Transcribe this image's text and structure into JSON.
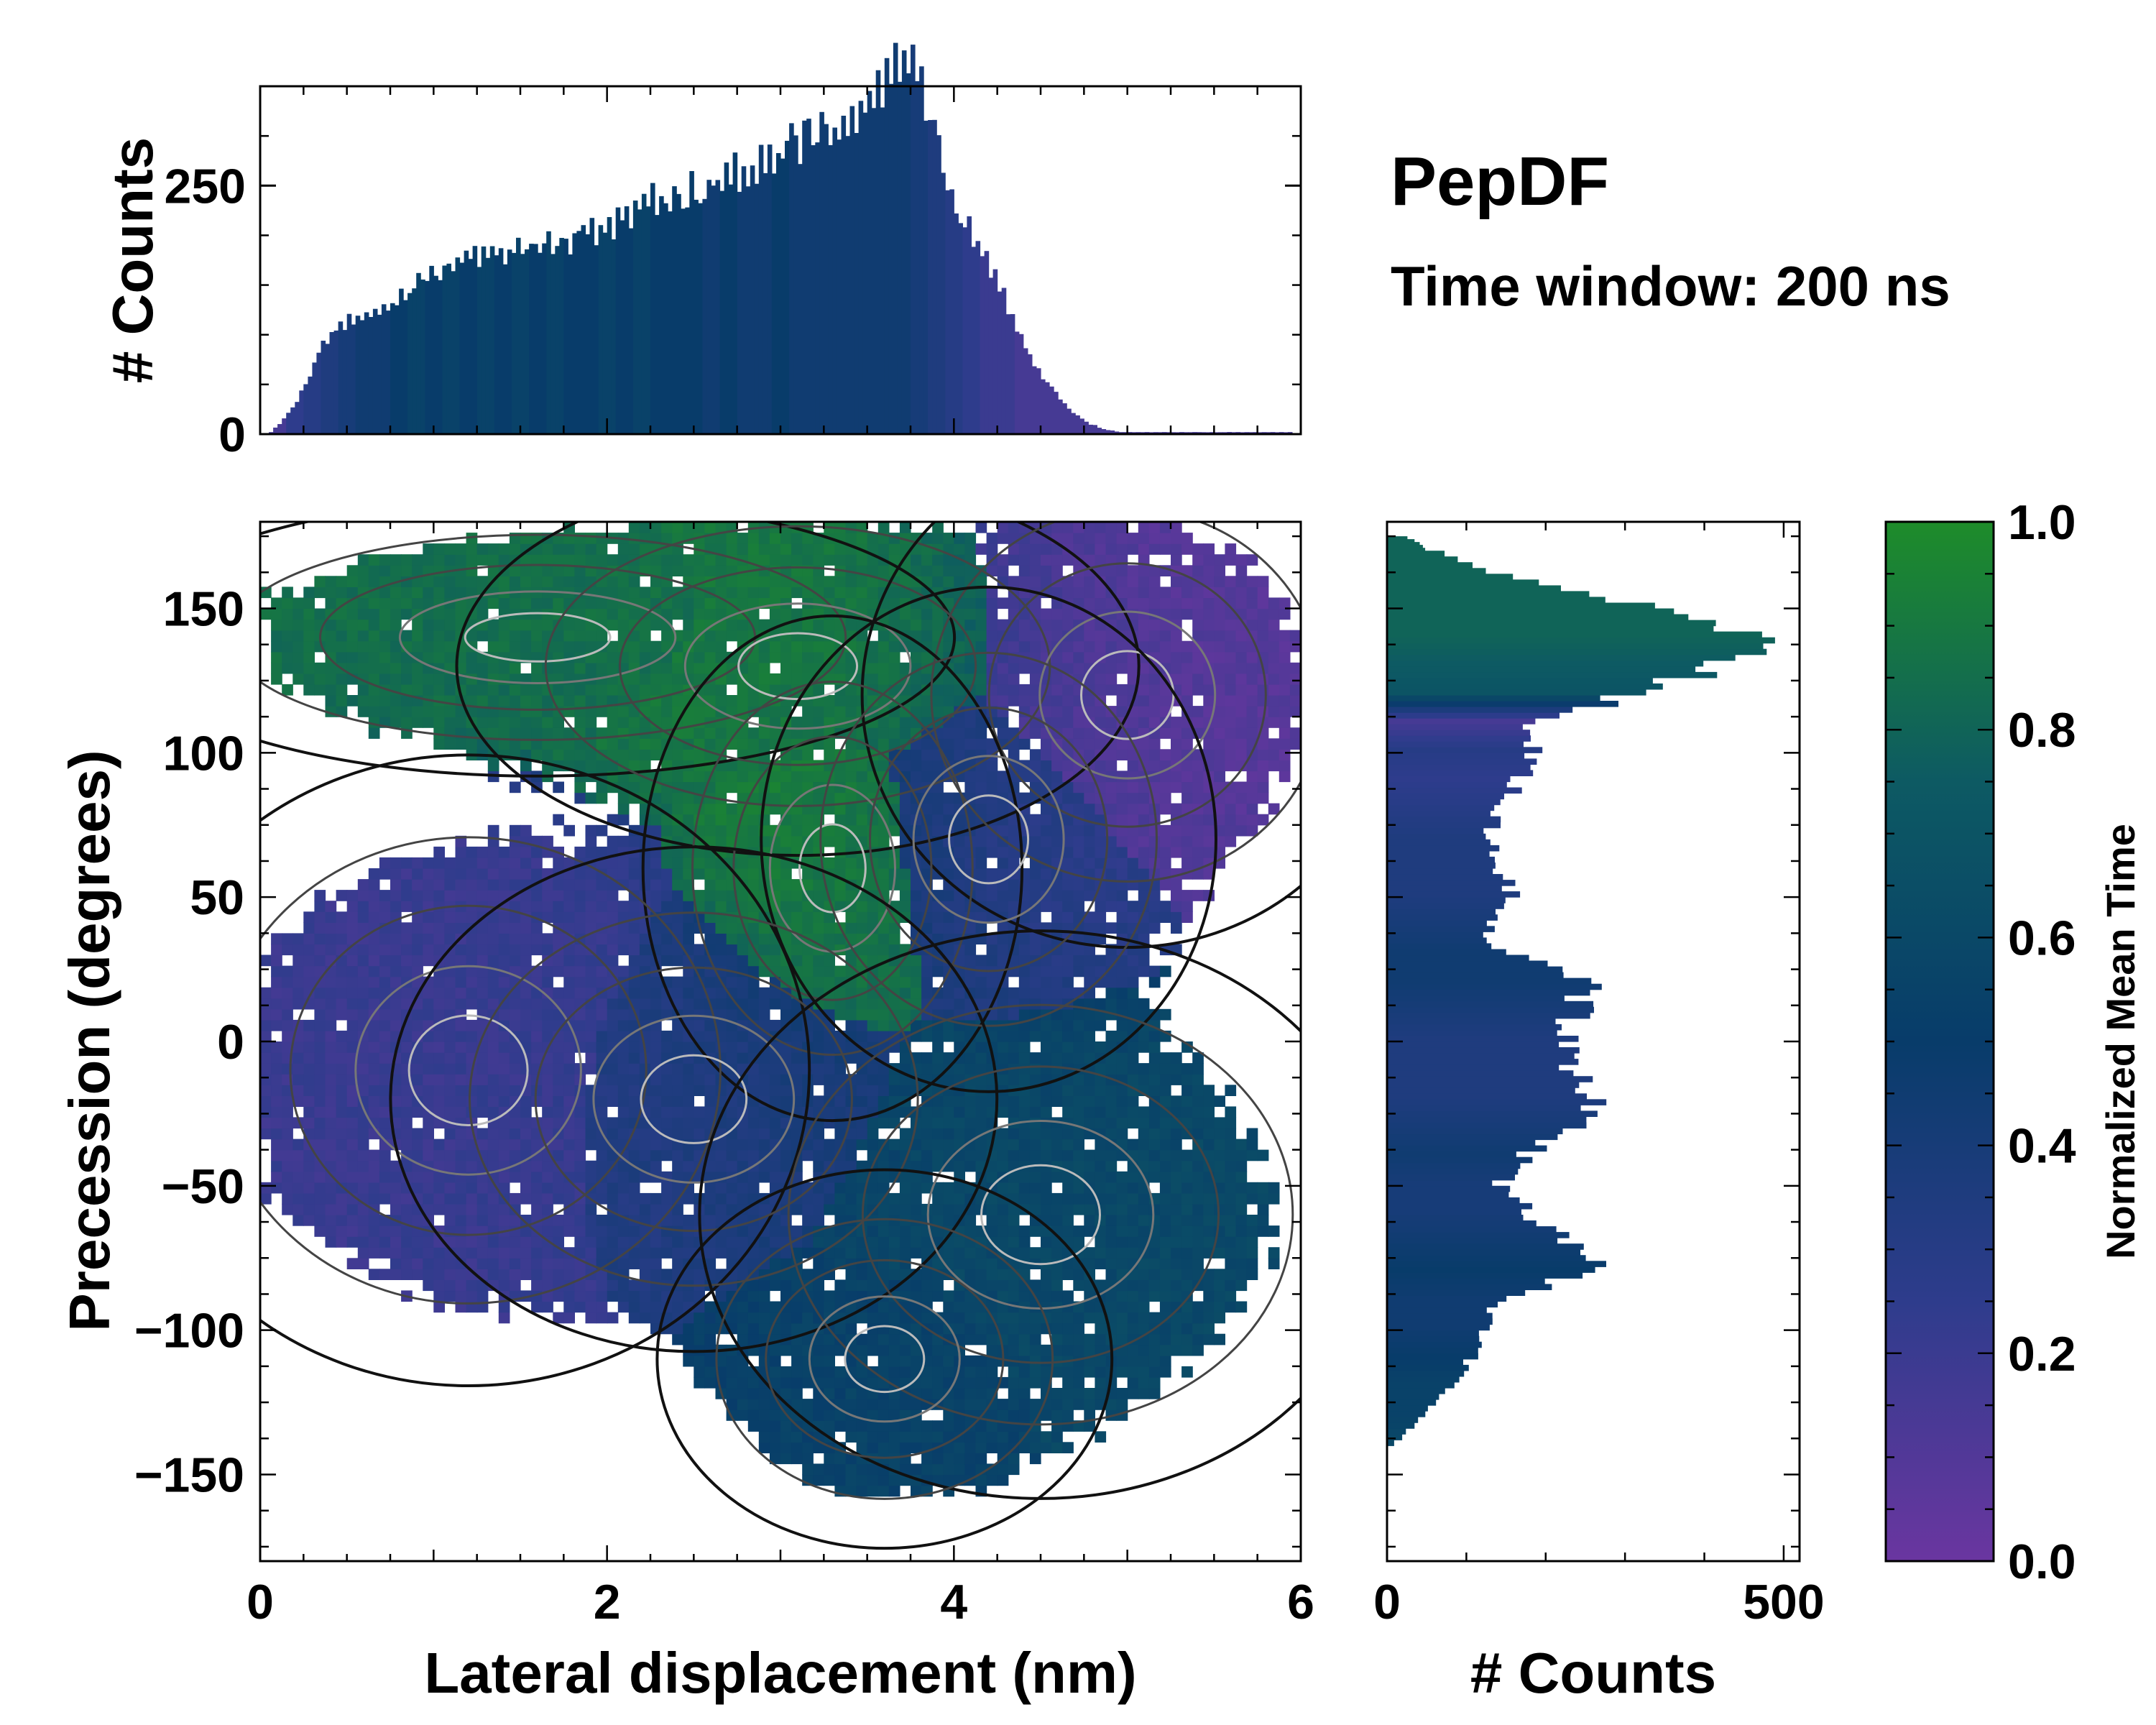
{
  "title": "PepDF",
  "subtitle": "Time window: 200 ns",
  "colors": {
    "cmap": [
      "#6a36a0",
      "#2e3c8c",
      "#083c6a",
      "#0d5a63",
      "#1e8c2a"
    ],
    "axis": "#000000"
  },
  "chart_data": [
    {
      "id": "top-histogram",
      "type": "bar",
      "title": "",
      "xlabel": "",
      "ylabel": "# Counts",
      "xlim": [
        0,
        6
      ],
      "ylim": [
        0,
        350
      ],
      "yticks": [
        0,
        250
      ],
      "yticklabels": [
        "0",
        "250"
      ],
      "bin_range": [
        0.1,
        5.9
      ],
      "x": [
        0.1,
        0.2,
        0.3,
        0.4,
        0.5,
        0.6,
        0.7,
        0.8,
        0.9,
        1.0,
        1.1,
        1.2,
        1.3,
        1.4,
        1.5,
        1.6,
        1.7,
        1.8,
        1.9,
        2.0,
        2.1,
        2.2,
        2.3,
        2.4,
        2.5,
        2.6,
        2.7,
        2.8,
        2.9,
        3.0,
        3.1,
        3.2,
        3.3,
        3.4,
        3.5,
        3.6,
        3.7,
        3.8,
        3.9,
        4.0,
        4.1,
        4.2,
        4.3,
        4.4,
        4.5,
        4.6,
        4.7,
        4.8,
        4.9,
        5.0,
        5.1,
        5.2,
        5.3,
        5.4,
        5.5,
        5.6,
        5.7,
        5.8,
        5.9
      ],
      "counts": [
        2,
        20,
        50,
        90,
        110,
        115,
        120,
        130,
        150,
        160,
        170,
        175,
        180,
        180,
        185,
        185,
        190,
        190,
        200,
        205,
        215,
        225,
        240,
        235,
        245,
        250,
        255,
        265,
        270,
        275,
        290,
        300,
        305,
        310,
        330,
        350,
        365,
        365,
        330,
        250,
        215,
        180,
        150,
        110,
        70,
        45,
        25,
        12,
        5,
        2,
        2,
        2,
        2,
        2,
        2,
        2,
        2,
        2,
        2
      ],
      "color_values": [
        0.15,
        0.25,
        0.3,
        0.35,
        0.4,
        0.45,
        0.45,
        0.5,
        0.55,
        0.5,
        0.55,
        0.5,
        0.55,
        0.5,
        0.55,
        0.5,
        0.55,
        0.5,
        0.5,
        0.55,
        0.5,
        0.55,
        0.5,
        0.5,
        0.5,
        0.45,
        0.5,
        0.45,
        0.45,
        0.5,
        0.45,
        0.45,
        0.45,
        0.45,
        0.45,
        0.45,
        0.45,
        0.4,
        0.35,
        0.3,
        0.25,
        0.2,
        0.2,
        0.15,
        0.15,
        0.15,
        0.15,
        0.15,
        0.15,
        0.15,
        0.15,
        0.15,
        0.15,
        0.15,
        0.15,
        0.15,
        0.15,
        0.15,
        0.15
      ]
    },
    {
      "id": "main-heatmap",
      "type": "heatmap",
      "title": "",
      "xlabel": "Lateral displacement (nm)",
      "ylabel": "Precession (degrees)",
      "xlim": [
        0,
        6
      ],
      "ylim": [
        -180,
        180
      ],
      "xticks": [
        0,
        2,
        4,
        6
      ],
      "xticklabels": [
        "0",
        "2",
        "4",
        "6"
      ],
      "yticks": [
        -150,
        -100,
        -50,
        0,
        50,
        100,
        150
      ],
      "yticklabels": [
        "−150",
        "−100",
        "−50",
        "0",
        "50",
        "100",
        "150"
      ],
      "regions": [
        {
          "name": "upper-left-green",
          "center": [
            1.6,
            140
          ],
          "spread": [
            1.1,
            22
          ],
          "value": 0.85
        },
        {
          "name": "upper-mid-green",
          "center": [
            3.1,
            130
          ],
          "spread": [
            0.9,
            30
          ],
          "value": 0.9
        },
        {
          "name": "upper-right-purple",
          "center": [
            5.0,
            120
          ],
          "spread": [
            0.7,
            40
          ],
          "value": 0.08
        },
        {
          "name": "center-green",
          "center": [
            3.3,
            60
          ],
          "spread": [
            0.5,
            40
          ],
          "value": 0.95
        },
        {
          "name": "center-blue",
          "center": [
            4.2,
            70
          ],
          "spread": [
            0.6,
            40
          ],
          "value": 0.3
        },
        {
          "name": "left-lower-purple",
          "center": [
            1.2,
            -10
          ],
          "spread": [
            0.9,
            50
          ],
          "value": 0.2
        },
        {
          "name": "mid-lower-blue",
          "center": [
            2.5,
            -20
          ],
          "spread": [
            0.8,
            40
          ],
          "value": 0.35
        },
        {
          "name": "right-lower-teal",
          "center": [
            4.5,
            -60
          ],
          "spread": [
            0.9,
            45
          ],
          "value": 0.6
        },
        {
          "name": "bottom-teal",
          "center": [
            3.6,
            -110
          ],
          "spread": [
            0.6,
            30
          ],
          "value": 0.55
        }
      ]
    },
    {
      "id": "right-histogram",
      "type": "bar",
      "orientation": "horizontal",
      "xlabel": "# Counts",
      "ylabel": "",
      "xlim": [
        0,
        520
      ],
      "xticks": [
        0,
        500
      ],
      "xticklabels": [
        "0",
        "500"
      ],
      "ylim": [
        -180,
        180
      ],
      "y": [
        -140,
        -130,
        -120,
        -110,
        -100,
        -90,
        -80,
        -70,
        -60,
        -50,
        -40,
        -30,
        -20,
        -10,
        0,
        10,
        20,
        30,
        40,
        50,
        60,
        70,
        80,
        90,
        100,
        110,
        120,
        130,
        140,
        150,
        160,
        170,
        175
      ],
      "counts": [
        10,
        50,
        80,
        110,
        120,
        150,
        260,
        220,
        180,
        140,
        180,
        240,
        260,
        220,
        230,
        240,
        260,
        150,
        120,
        160,
        130,
        130,
        140,
        170,
        180,
        190,
        320,
        430,
        480,
        340,
        150,
        50,
        20
      ],
      "color_values": [
        0.6,
        0.55,
        0.55,
        0.5,
        0.45,
        0.45,
        0.5,
        0.45,
        0.4,
        0.4,
        0.45,
        0.4,
        0.35,
        0.35,
        0.35,
        0.4,
        0.45,
        0.45,
        0.4,
        0.35,
        0.35,
        0.35,
        0.3,
        0.25,
        0.3,
        0.15,
        0.7,
        0.75,
        0.8,
        0.8,
        0.8,
        0.8,
        0.8
      ]
    },
    {
      "id": "colorbar",
      "type": "colorbar",
      "label": "Normalized Mean Time",
      "range": [
        0,
        1
      ],
      "ticks": [
        0.0,
        0.2,
        0.4,
        0.6,
        0.8,
        1.0
      ],
      "ticklabels": [
        "0.0",
        "0.2",
        "0.4",
        "0.6",
        "0.8",
        "1.0"
      ]
    }
  ]
}
